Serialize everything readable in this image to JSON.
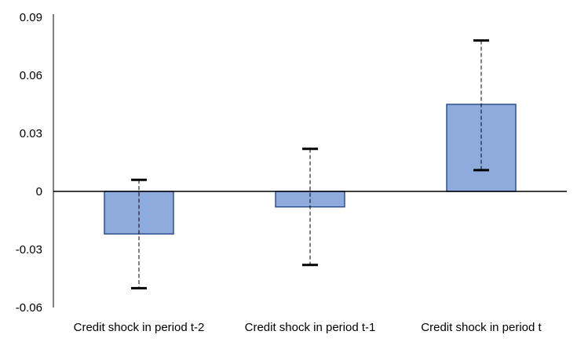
{
  "chart_data": {
    "type": "bar",
    "title": "",
    "xlabel": "",
    "ylabel": "",
    "categories": [
      "Credit shock in period t-2",
      "Credit shock in period t-1",
      "Credit shock in period t"
    ],
    "values": [
      -0.022,
      -0.008,
      0.045
    ],
    "error_low": [
      -0.05,
      -0.038,
      0.011
    ],
    "error_high": [
      0.006,
      0.022,
      0.078
    ],
    "ylim": [
      -0.06,
      0.09
    ],
    "yticks": [
      "0.09",
      "0.06",
      "0.03",
      "0",
      "-0.03",
      "-0.06"
    ],
    "ytick_values": [
      0.09,
      0.06,
      0.03,
      0,
      -0.03,
      -0.06
    ],
    "grid": false,
    "legend": "none",
    "colors": {
      "bar_fill": "#8faadc",
      "bar_stroke": "#2f528f",
      "axis": "#000000",
      "error": "#000000"
    }
  }
}
